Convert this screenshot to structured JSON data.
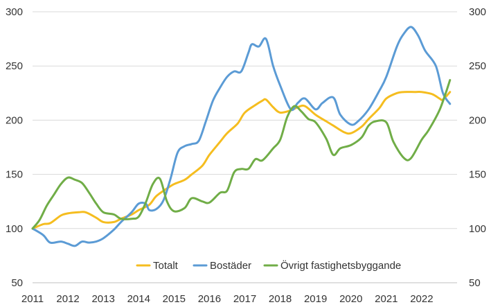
{
  "chart_data": {
    "type": "line",
    "title": "",
    "xlabel": "",
    "ylabel": "",
    "ylim": [
      50,
      300
    ],
    "yticks": [
      50,
      100,
      150,
      200,
      250,
      300
    ],
    "xlim": [
      2011,
      2023
    ],
    "xticks": [
      "2011",
      "2012",
      "2013",
      "2014",
      "2015",
      "2016",
      "2017",
      "2018",
      "2019",
      "2020",
      "2021",
      "2022"
    ],
    "secondary_axis": true,
    "grid": "horizontal",
    "legend_position": "bottom-inside",
    "series": [
      {
        "name": "Totalt",
        "color": "#F5BD1F",
        "points": [
          [
            2011.0,
            100
          ],
          [
            2011.3,
            104
          ],
          [
            2011.5,
            105
          ],
          [
            2011.8,
            112
          ],
          [
            2012.0,
            114
          ],
          [
            2012.3,
            115
          ],
          [
            2012.5,
            115
          ],
          [
            2012.8,
            110
          ],
          [
            2013.0,
            106
          ],
          [
            2013.3,
            106
          ],
          [
            2013.5,
            109
          ],
          [
            2013.8,
            113
          ],
          [
            2014.0,
            117
          ],
          [
            2014.3,
            122
          ],
          [
            2014.5,
            130
          ],
          [
            2014.8,
            137
          ],
          [
            2015.0,
            141
          ],
          [
            2015.3,
            145
          ],
          [
            2015.5,
            150
          ],
          [
            2015.8,
            158
          ],
          [
            2016.0,
            168
          ],
          [
            2016.3,
            180
          ],
          [
            2016.5,
            188
          ],
          [
            2016.8,
            197
          ],
          [
            2017.0,
            207
          ],
          [
            2017.3,
            214
          ],
          [
            2017.5,
            218
          ],
          [
            2017.6,
            219
          ],
          [
            2017.8,
            212
          ],
          [
            2018.0,
            207
          ],
          [
            2018.3,
            209
          ],
          [
            2018.5,
            212
          ],
          [
            2018.7,
            213
          ],
          [
            2019.0,
            205
          ],
          [
            2019.3,
            199
          ],
          [
            2019.5,
            195
          ],
          [
            2019.8,
            189
          ],
          [
            2020.0,
            188
          ],
          [
            2020.3,
            194
          ],
          [
            2020.5,
            201
          ],
          [
            2020.8,
            211
          ],
          [
            2021.0,
            220
          ],
          [
            2021.3,
            225
          ],
          [
            2021.5,
            226
          ],
          [
            2021.8,
            226
          ],
          [
            2022.0,
            226
          ],
          [
            2022.3,
            224
          ],
          [
            2022.5,
            220
          ],
          [
            2022.6,
            219
          ],
          [
            2022.8,
            226
          ]
        ]
      },
      {
        "name": "Bostäder",
        "color": "#5B9BD5",
        "points": [
          [
            2011.0,
            100
          ],
          [
            2011.3,
            94
          ],
          [
            2011.5,
            87
          ],
          [
            2011.8,
            88
          ],
          [
            2012.0,
            86
          ],
          [
            2012.2,
            84
          ],
          [
            2012.4,
            88
          ],
          [
            2012.6,
            87
          ],
          [
            2012.8,
            88
          ],
          [
            2013.0,
            91
          ],
          [
            2013.3,
            99
          ],
          [
            2013.5,
            106
          ],
          [
            2013.8,
            115
          ],
          [
            2014.0,
            123
          ],
          [
            2014.2,
            123
          ],
          [
            2014.3,
            117
          ],
          [
            2014.5,
            118
          ],
          [
            2014.7,
            126
          ],
          [
            2014.9,
            146
          ],
          [
            2015.1,
            170
          ],
          [
            2015.3,
            176
          ],
          [
            2015.5,
            178
          ],
          [
            2015.7,
            181
          ],
          [
            2015.9,
            199
          ],
          [
            2016.1,
            218
          ],
          [
            2016.3,
            230
          ],
          [
            2016.5,
            240
          ],
          [
            2016.7,
            245
          ],
          [
            2016.9,
            245
          ],
          [
            2017.1,
            262
          ],
          [
            2017.2,
            270
          ],
          [
            2017.4,
            268
          ],
          [
            2017.6,
            275
          ],
          [
            2017.8,
            250
          ],
          [
            2018.0,
            232
          ],
          [
            2018.3,
            210
          ],
          [
            2018.5,
            216
          ],
          [
            2018.7,
            220
          ],
          [
            2019.0,
            210
          ],
          [
            2019.2,
            216
          ],
          [
            2019.5,
            221
          ],
          [
            2019.7,
            205
          ],
          [
            2020.0,
            196
          ],
          [
            2020.2,
            199
          ],
          [
            2020.5,
            210
          ],
          [
            2020.8,
            227
          ],
          [
            2021.0,
            240
          ],
          [
            2021.3,
            268
          ],
          [
            2021.5,
            280
          ],
          [
            2021.7,
            286
          ],
          [
            2021.9,
            278
          ],
          [
            2022.1,
            264
          ],
          [
            2022.4,
            250
          ],
          [
            2022.6,
            225
          ],
          [
            2022.8,
            215
          ]
        ]
      },
      {
        "name": "Övrigt fastighetsbyggande",
        "color": "#70AD47",
        "points": [
          [
            2011.0,
            100
          ],
          [
            2011.2,
            108
          ],
          [
            2011.4,
            121
          ],
          [
            2011.6,
            131
          ],
          [
            2011.8,
            141
          ],
          [
            2012.0,
            147
          ],
          [
            2012.2,
            145
          ],
          [
            2012.4,
            142
          ],
          [
            2012.6,
            133
          ],
          [
            2012.8,
            123
          ],
          [
            2013.0,
            115
          ],
          [
            2013.3,
            113
          ],
          [
            2013.5,
            109
          ],
          [
            2013.8,
            109
          ],
          [
            2014.0,
            111
          ],
          [
            2014.2,
            124
          ],
          [
            2014.4,
            141
          ],
          [
            2014.6,
            146
          ],
          [
            2014.8,
            125
          ],
          [
            2015.0,
            116
          ],
          [
            2015.3,
            119
          ],
          [
            2015.5,
            128
          ],
          [
            2015.8,
            125
          ],
          [
            2016.0,
            124
          ],
          [
            2016.3,
            133
          ],
          [
            2016.5,
            135
          ],
          [
            2016.7,
            152
          ],
          [
            2016.9,
            155
          ],
          [
            2017.1,
            155
          ],
          [
            2017.3,
            164
          ],
          [
            2017.5,
            163
          ],
          [
            2017.8,
            174
          ],
          [
            2018.0,
            182
          ],
          [
            2018.2,
            203
          ],
          [
            2018.4,
            213
          ],
          [
            2018.6,
            208
          ],
          [
            2018.8,
            201
          ],
          [
            2019.0,
            198
          ],
          [
            2019.3,
            183
          ],
          [
            2019.5,
            168
          ],
          [
            2019.7,
            174
          ],
          [
            2020.0,
            177
          ],
          [
            2020.3,
            184
          ],
          [
            2020.5,
            195
          ],
          [
            2020.7,
            199
          ],
          [
            2021.0,
            198
          ],
          [
            2021.2,
            180
          ],
          [
            2021.5,
            165
          ],
          [
            2021.7,
            165
          ],
          [
            2022.0,
            182
          ],
          [
            2022.2,
            191
          ],
          [
            2022.5,
            209
          ],
          [
            2022.7,
            227
          ],
          [
            2022.8,
            237
          ]
        ]
      }
    ]
  }
}
